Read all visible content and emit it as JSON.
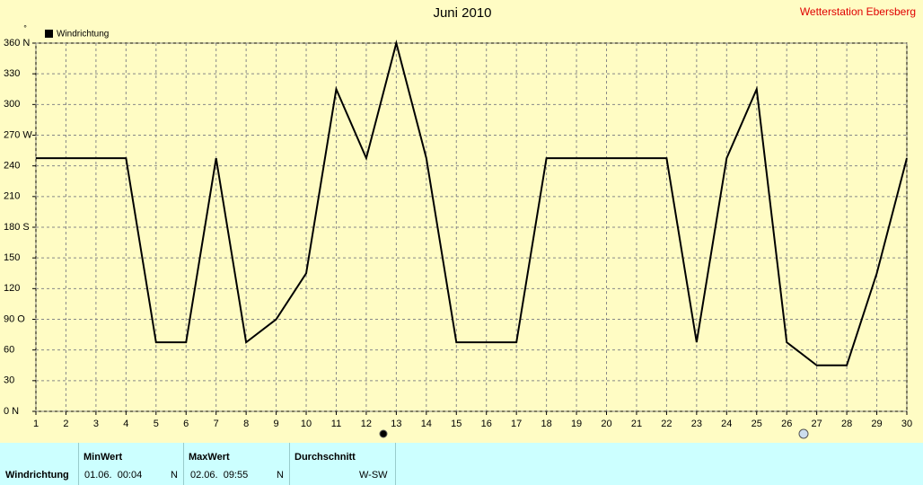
{
  "chart_data": {
    "type": "line",
    "title": "Juni 2010",
    "subtitle": "Wetterstation Ebersberg",
    "ylabel": "°",
    "x": [
      1,
      2,
      3,
      4,
      5,
      6,
      7,
      8,
      9,
      10,
      11,
      12,
      13,
      14,
      15,
      16,
      17,
      18,
      19,
      20,
      21,
      22,
      23,
      24,
      25,
      26,
      27,
      28,
      29,
      30
    ],
    "series": [
      {
        "name": "Windrichtung",
        "color": "#000000",
        "values": [
          247.5,
          247.5,
          247.5,
          247.5,
          67.5,
          67.5,
          247.5,
          67.5,
          90,
          135,
          315,
          247.5,
          360,
          247.5,
          67.5,
          67.5,
          67.5,
          247.5,
          247.5,
          247.5,
          247.5,
          247.5,
          67.5,
          247.5,
          315,
          67.5,
          45,
          45,
          135,
          247.5
        ]
      }
    ],
    "xlim": [
      1,
      30
    ],
    "xticks": [
      1,
      2,
      3,
      4,
      5,
      6,
      7,
      8,
      9,
      10,
      11,
      12,
      13,
      14,
      15,
      16,
      17,
      18,
      19,
      20,
      21,
      22,
      23,
      24,
      25,
      26,
      27,
      28,
      29,
      30
    ],
    "ylim": [
      0,
      360
    ],
    "yticks": [
      {
        "value": 0,
        "label": "0 N"
      },
      30,
      60,
      {
        "value": 90,
        "label": "90 O"
      },
      120,
      150,
      {
        "value": 180,
        "label": "180 S"
      },
      210,
      240,
      {
        "value": 270,
        "label": "270 W"
      },
      300,
      330,
      {
        "value": 360,
        "label": "360 N"
      }
    ],
    "grid": true,
    "legend": "top-left"
  },
  "table": {
    "headers": [
      "MinWert",
      "MaxWert",
      "Durchschnitt"
    ],
    "rows": [
      [
        "Windrichtung",
        "01.06.  00:04",
        "N",
        "02.06.  09:55",
        "N",
        "W-SW"
      ]
    ]
  }
}
